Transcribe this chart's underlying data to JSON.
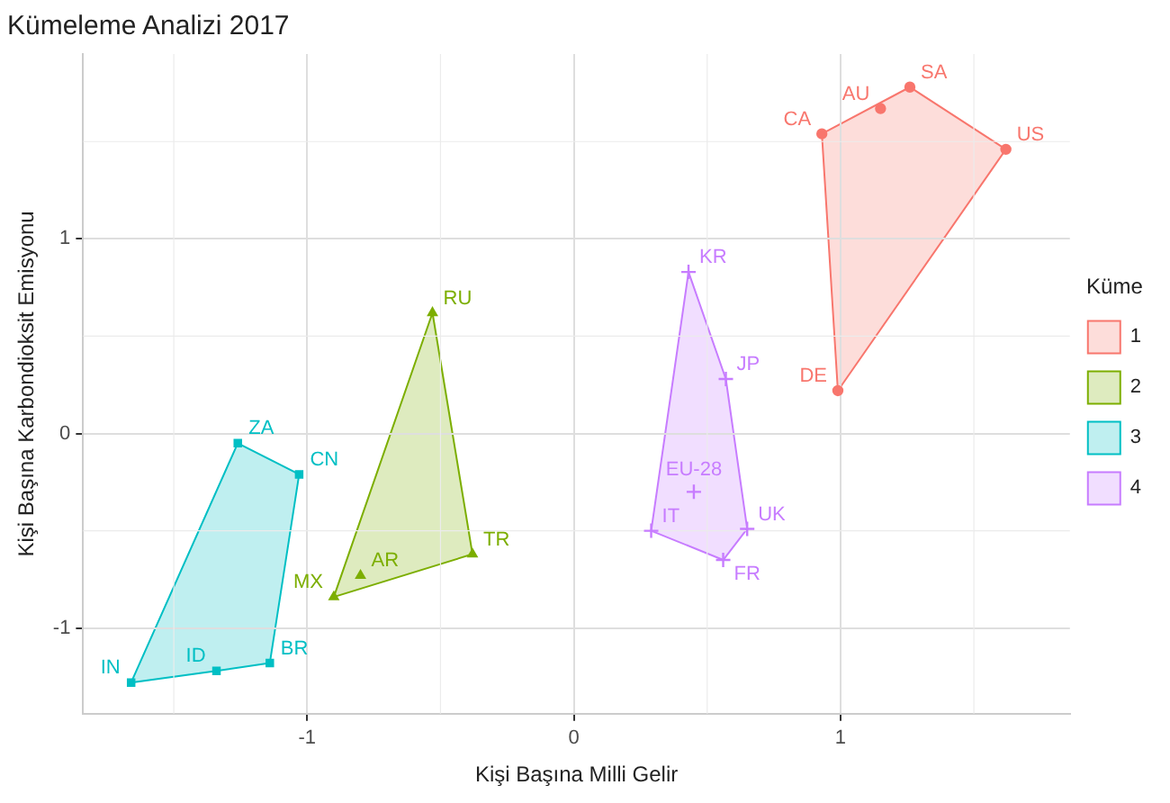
{
  "chart_data": {
    "type": "scatter",
    "title": "Kümeleme Analizi 2017",
    "xlabel": "Kişi Başına Milli Gelir",
    "ylabel": "Kişi Başına Karbondioksit Emisyonu",
    "legend_title": "Küme",
    "legend": "right",
    "grid": true,
    "xlim": [
      -1.84,
      1.86
    ],
    "ylim": [
      -1.44,
      1.95
    ],
    "xticks": [
      -1,
      0,
      1
    ],
    "yticks": [
      -1,
      0,
      1
    ],
    "series": [
      {
        "name": "1",
        "color": "#f8766d",
        "marker": "circle",
        "x": [
          1.62,
          1.26,
          1.15,
          0.93,
          0.99
        ],
        "values": [
          1.46,
          1.78,
          1.67,
          1.54,
          0.22
        ]
      },
      {
        "name": "2",
        "color": "#7cae00",
        "marker": "triangle",
        "x": [
          -0.53,
          -0.38,
          -0.8,
          -0.9
        ],
        "values": [
          0.62,
          -0.62,
          -0.73,
          -0.84
        ]
      },
      {
        "name": "3",
        "color": "#00bfc4",
        "marker": "square",
        "x": [
          -1.26,
          -1.03,
          -1.14,
          -1.34,
          -1.66
        ],
        "values": [
          -0.05,
          -0.21,
          -1.18,
          -1.22,
          -1.28
        ]
      },
      {
        "name": "4",
        "color": "#c77cff",
        "marker": "cross",
        "x": [
          0.43,
          0.57,
          0.45,
          0.65,
          0.29,
          0.56
        ],
        "values": [
          0.83,
          0.28,
          -0.3,
          -0.49,
          -0.5,
          -0.65
        ]
      }
    ],
    "annotations": [
      {
        "text": "US",
        "x": 1.62,
        "y": 1.46
      },
      {
        "text": "SA",
        "x": 1.26,
        "y": 1.78
      },
      {
        "text": "AU",
        "x": 1.15,
        "y": 1.67
      },
      {
        "text": "CA",
        "x": 0.93,
        "y": 1.54
      },
      {
        "text": "DE",
        "x": 0.99,
        "y": 0.22
      },
      {
        "text": "RU",
        "x": -0.53,
        "y": 0.62
      },
      {
        "text": "TR",
        "x": -0.38,
        "y": -0.62
      },
      {
        "text": "AR",
        "x": -0.8,
        "y": -0.73
      },
      {
        "text": "MX",
        "x": -0.9,
        "y": -0.84
      },
      {
        "text": "ZA",
        "x": -1.26,
        "y": -0.05
      },
      {
        "text": "CN",
        "x": -1.03,
        "y": -0.21
      },
      {
        "text": "BR",
        "x": -1.14,
        "y": -1.18
      },
      {
        "text": "ID",
        "x": -1.34,
        "y": -1.22
      },
      {
        "text": "IN",
        "x": -1.66,
        "y": -1.28
      },
      {
        "text": "KR",
        "x": 0.43,
        "y": 0.83
      },
      {
        "text": "JP",
        "x": 0.57,
        "y": 0.28
      },
      {
        "text": "EU-28",
        "x": 0.45,
        "y": -0.3
      },
      {
        "text": "UK",
        "x": 0.65,
        "y": -0.49
      },
      {
        "text": "IT",
        "x": 0.29,
        "y": -0.5
      },
      {
        "text": "FR",
        "x": 0.56,
        "y": -0.65
      }
    ]
  }
}
